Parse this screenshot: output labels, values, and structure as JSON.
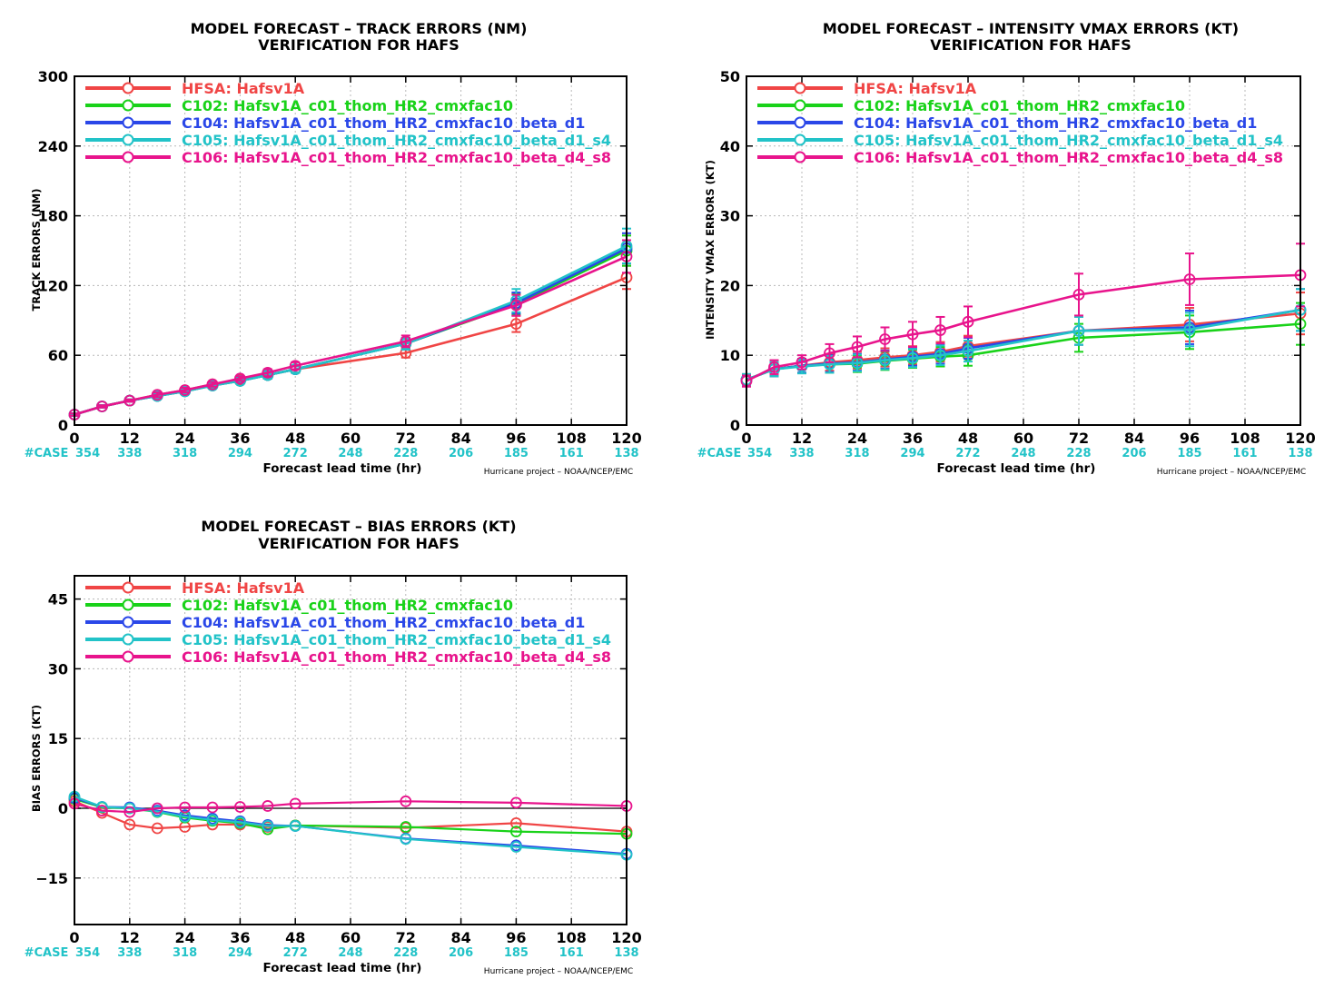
{
  "colors": {
    "HFSA": "#f04545",
    "C102": "#19d219",
    "C104": "#2a47e8",
    "C105": "#22c3c8",
    "C106": "#e8148c",
    "case": "#22c3c8"
  },
  "common": {
    "xlabel": "Forecast lead time (hr)",
    "credit": "Hurricane project – NOAA/NCEP/EMC",
    "case_label": "#CASE",
    "x_ticks": [
      0,
      12,
      24,
      36,
      48,
      60,
      72,
      84,
      96,
      108,
      120
    ],
    "cases": [
      {
        "x": 0,
        "n": "354"
      },
      {
        "x": 12,
        "n": "338"
      },
      {
        "x": 24,
        "n": "318"
      },
      {
        "x": 36,
        "n": "294"
      },
      {
        "x": 48,
        "n": "272"
      },
      {
        "x": 60,
        "n": "248"
      },
      {
        "x": 72,
        "n": "228"
      },
      {
        "x": 84,
        "n": "206"
      },
      {
        "x": 96,
        "n": "185"
      },
      {
        "x": 108,
        "n": "161"
      },
      {
        "x": 120,
        "n": "138"
      }
    ],
    "legend": [
      {
        "key": "HFSA",
        "text": "HFSA: Hafsv1A"
      },
      {
        "key": "C102",
        "text": "C102: Hafsv1A_c01_thom_HR2_cmxfac10"
      },
      {
        "key": "C104",
        "text": "C104: Hafsv1A_c01_thom_HR2_cmxfac10_beta_d1"
      },
      {
        "key": "C105",
        "text": "C105: Hafsv1A_c01_thom_HR2_cmxfac10_beta_d1_s4"
      },
      {
        "key": "C106",
        "text": "C106: Hafsv1A_c01_thom_HR2_cmxfac10_beta_d4_s8"
      }
    ]
  },
  "chart_data": [
    {
      "type": "line",
      "title": "MODEL FORECAST – TRACK ERRORS (NM)",
      "subtitle": "VERIFICATION FOR HAFS",
      "ylabel": "TRACK ERRORS (NM)",
      "xlabel": "Forecast lead time (hr)",
      "xlim": [
        0,
        120
      ],
      "ylim": [
        0,
        300
      ],
      "y_ticks": [
        0,
        60,
        120,
        180,
        240,
        300
      ],
      "grid": true,
      "legend_position": "top-left",
      "x": [
        0,
        6,
        12,
        18,
        24,
        30,
        36,
        42,
        48,
        72,
        96,
        120
      ],
      "series": [
        {
          "name": "HFSA: Hafsv1A",
          "key": "HFSA",
          "values": [
            9,
            16,
            21,
            26,
            30,
            35,
            39,
            43,
            48,
            62,
            87,
            127
          ],
          "err": [
            1,
            1,
            1,
            2,
            2,
            2,
            2,
            3,
            3,
            4,
            7,
            10
          ]
        },
        {
          "name": "C102: Hafsv1A_c01_thom_HR2_cmxfac10",
          "key": "C102",
          "values": [
            9,
            16,
            21,
            25,
            29,
            34,
            38,
            43,
            48,
            70,
            104,
            150
          ],
          "err": [
            1,
            1,
            1,
            2,
            2,
            2,
            2,
            3,
            3,
            5,
            9,
            13
          ]
        },
        {
          "name": "C104: Hafsv1A_c01_thom_HR2_cmxfac10_beta_d1",
          "key": "C104",
          "values": [
            9,
            16,
            21,
            25,
            29,
            34,
            38,
            43,
            48,
            70,
            105,
            152
          ],
          "err": [
            1,
            1,
            1,
            2,
            2,
            2,
            2,
            3,
            3,
            5,
            9,
            13
          ]
        },
        {
          "name": "C105: Hafsv1A_c01_thom_HR2_cmxfac10_beta_d1_s4",
          "key": "C105",
          "values": [
            9,
            16,
            21,
            25,
            29,
            34,
            38,
            43,
            48,
            70,
            107,
            154
          ],
          "err": [
            1,
            1,
            1,
            2,
            2,
            2,
            2,
            3,
            3,
            5,
            10,
            15
          ]
        },
        {
          "name": "C106: Hafsv1A_c01_thom_HR2_cmxfac10_beta_d4_s8",
          "key": "C106",
          "values": [
            9,
            16,
            21,
            26,
            30,
            35,
            40,
            45,
            51,
            72,
            103,
            145
          ],
          "err": [
            1,
            1,
            1,
            2,
            2,
            2,
            2,
            3,
            3,
            5,
            9,
            14
          ]
        }
      ]
    },
    {
      "type": "line",
      "title": "MODEL FORECAST – INTENSITY VMAX ERRORS (KT)",
      "subtitle": "VERIFICATION FOR HAFS",
      "ylabel": "INTENSITY VMAX ERRORS (KT)",
      "xlabel": "Forecast lead time (hr)",
      "xlim": [
        0,
        120
      ],
      "ylim": [
        0,
        50
      ],
      "y_ticks": [
        0,
        10,
        20,
        30,
        40,
        50
      ],
      "grid": true,
      "legend_position": "top-left",
      "x": [
        0,
        6,
        12,
        18,
        24,
        30,
        36,
        42,
        48,
        72,
        96,
        120
      ],
      "series": [
        {
          "name": "HFSA: Hafsv1A",
          "key": "HFSA",
          "values": [
            6.5,
            8.0,
            8.5,
            9.0,
            9.3,
            9.7,
            10.0,
            10.5,
            11.3,
            13.5,
            14.4,
            16.0
          ],
          "err": [
            0.8,
            1.0,
            1.0,
            1.2,
            1.2,
            1.3,
            1.3,
            1.4,
            1.5,
            2.0,
            2.4,
            3.0
          ]
        },
        {
          "name": "C102: Hafsv1A_c01_thom_HR2_cmxfac10",
          "key": "C102",
          "values": [
            6.5,
            8.0,
            8.5,
            8.7,
            8.8,
            9.2,
            9.5,
            9.8,
            10.0,
            12.5,
            13.3,
            14.5
          ],
          "err": [
            0.8,
            1.0,
            1.0,
            1.2,
            1.2,
            1.3,
            1.3,
            1.4,
            1.5,
            2.0,
            2.4,
            3.0
          ]
        },
        {
          "name": "C104: Hafsv1A_c01_thom_HR2_cmxfac10_beta_d1",
          "key": "C104",
          "values": [
            6.5,
            8.0,
            8.5,
            8.8,
            9.0,
            9.4,
            9.8,
            10.2,
            11.0,
            13.5,
            14.0,
            16.5
          ],
          "err": [
            0.8,
            1.0,
            1.0,
            1.2,
            1.2,
            1.3,
            1.3,
            1.4,
            1.5,
            2.0,
            2.4,
            3.0
          ]
        },
        {
          "name": "C105: Hafsv1A_c01_thom_HR2_cmxfac10_beta_d1_s4",
          "key": "C105",
          "values": [
            6.5,
            8.0,
            8.4,
            8.7,
            8.9,
            9.3,
            9.6,
            10.0,
            10.6,
            13.5,
            13.7,
            16.5
          ],
          "err": [
            0.8,
            1.0,
            1.0,
            1.2,
            1.2,
            1.3,
            1.3,
            1.4,
            1.5,
            2.0,
            2.4,
            3.0
          ]
        },
        {
          "name": "C106: Hafsv1A_c01_thom_HR2_cmxfac10_beta_d4_s8",
          "key": "C106",
          "values": [
            6.3,
            8.3,
            9.0,
            10.3,
            11.2,
            12.3,
            13.0,
            13.6,
            14.8,
            18.7,
            20.9,
            21.5
          ],
          "err": [
            0.8,
            1.0,
            1.0,
            1.3,
            1.5,
            1.7,
            1.8,
            1.9,
            2.2,
            3.0,
            3.7,
            4.5
          ]
        }
      ]
    },
    {
      "type": "line",
      "title": "MODEL FORECAST – BIAS ERRORS (KT)",
      "subtitle": "VERIFICATION FOR HAFS",
      "ylabel": "BIAS ERRORS (KT)",
      "xlabel": "Forecast lead time (hr)",
      "xlim": [
        0,
        120
      ],
      "ylim": [
        -25,
        50
      ],
      "y_ticks": [
        -15,
        0,
        15,
        30,
        45
      ],
      "grid": true,
      "zero_line": true,
      "legend_position": "top-left",
      "x": [
        0,
        6,
        12,
        18,
        24,
        30,
        36,
        42,
        48,
        72,
        96,
        120
      ],
      "series": [
        {
          "name": "HFSA: Hafsv1A",
          "key": "HFSA",
          "values": [
            1.5,
            -1.0,
            -3.5,
            -4.3,
            -4.0,
            -3.5,
            -3.5,
            -4.0,
            -3.7,
            -4.2,
            -3.2,
            -5.0
          ]
        },
        {
          "name": "C102: Hafsv1A_c01_thom_HR2_cmxfac10",
          "key": "C102",
          "values": [
            2.0,
            0.2,
            0.0,
            -0.8,
            -2.0,
            -2.7,
            -3.2,
            -4.5,
            -3.7,
            -4.0,
            -5.0,
            -5.5
          ]
        },
        {
          "name": "C104: Hafsv1A_c01_thom_HR2_cmxfac10_beta_d1",
          "key": "C104",
          "values": [
            2.2,
            0.3,
            0.2,
            -0.5,
            -1.5,
            -2.2,
            -2.8,
            -3.6,
            -3.8,
            -6.5,
            -8.0,
            -9.8
          ]
        },
        {
          "name": "C105: Hafsv1A_c01_thom_HR2_cmxfac10_beta_d1_s4",
          "key": "C105",
          "values": [
            2.5,
            0.3,
            0.0,
            -0.7,
            -1.8,
            -2.5,
            -3.0,
            -3.8,
            -3.8,
            -6.6,
            -8.3,
            -10.0
          ]
        },
        {
          "name": "C106: Hafsv1A_c01_thom_HR2_cmxfac10_beta_d4_s8",
          "key": "C106",
          "values": [
            1.0,
            -0.5,
            -0.8,
            0.0,
            0.2,
            0.2,
            0.3,
            0.5,
            1.0,
            1.5,
            1.2,
            0.5
          ]
        }
      ]
    }
  ]
}
